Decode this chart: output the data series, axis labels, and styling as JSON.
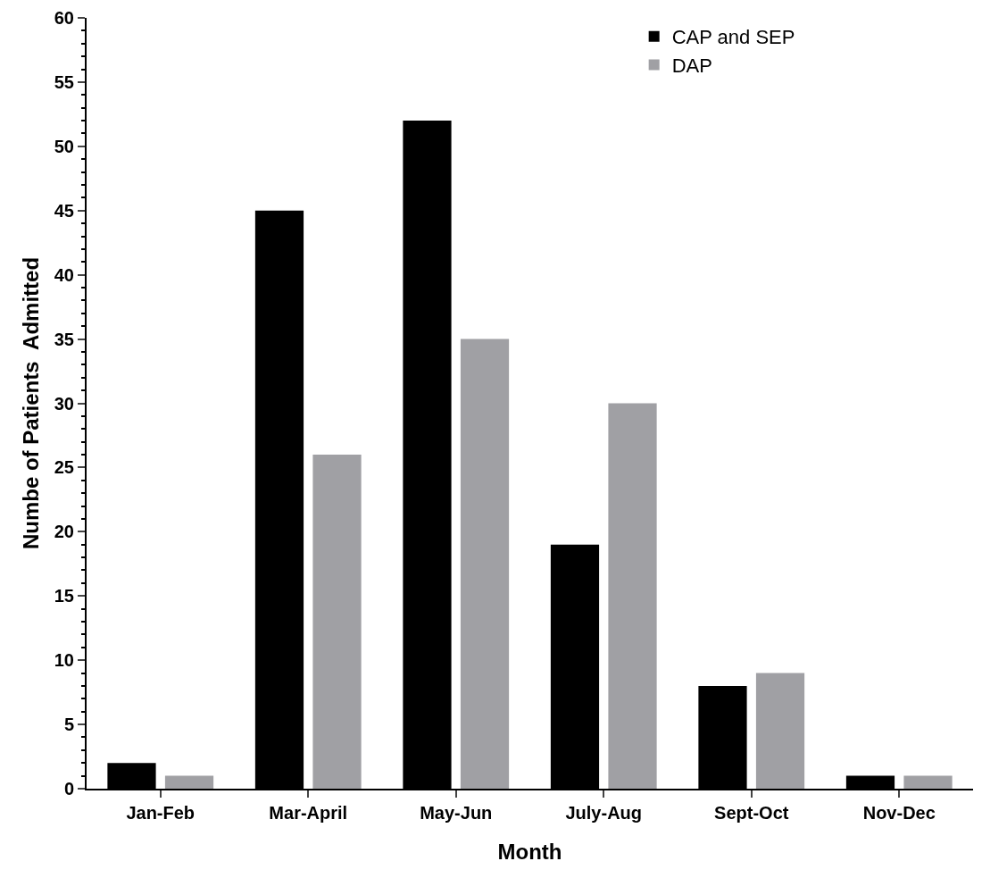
{
  "chart_data": {
    "type": "bar",
    "xlabel": "Month",
    "ylabel": "Numbe of Patients  Admitted",
    "categories": [
      "Jan-Feb",
      "Mar-April",
      "May-Jun",
      "July-Aug",
      "Sept-Oct",
      "Nov-Dec"
    ],
    "series": [
      {
        "name": "CAP and SEP",
        "color": "#000000",
        "values": [
          2,
          45,
          52,
          19,
          8,
          1
        ]
      },
      {
        "name": "DAP",
        "color": "#a0a0a4",
        "values": [
          1,
          26,
          35,
          30,
          9,
          1
        ]
      }
    ],
    "ylim": [
      0,
      60
    ],
    "yticks": [
      0,
      {
        "value": 1,
        "label": null
      },
      {
        "value": 2,
        "label": null
      },
      {
        "value": 3,
        "label": null
      },
      {
        "value": 4,
        "label": null
      },
      5,
      {
        "value": 6,
        "label": null
      },
      {
        "value": 7,
        "label": null
      },
      {
        "value": 8,
        "label": null
      },
      {
        "value": 9,
        "label": null
      },
      10,
      {
        "value": 11,
        "label": null
      },
      {
        "value": 12,
        "label": null
      },
      {
        "value": 13,
        "label": null
      },
      {
        "value": 14,
        "label": null
      },
      15,
      {
        "value": 16,
        "label": null
      },
      {
        "value": 17,
        "label": null
      },
      {
        "value": 18,
        "label": null
      },
      {
        "value": 19,
        "label": null
      },
      20,
      {
        "value": 21,
        "label": null
      },
      {
        "value": 22,
        "label": null
      },
      {
        "value": 23,
        "label": null
      },
      {
        "value": 24,
        "label": null
      },
      25,
      {
        "value": 26,
        "label": null
      },
      {
        "value": 27,
        "label": null
      },
      {
        "value": 28,
        "label": null
      },
      {
        "value": 29,
        "label": null
      },
      30,
      {
        "value": 31,
        "label": null
      },
      {
        "value": 32,
        "label": null
      },
      {
        "value": 33,
        "label": null
      },
      {
        "value": 34,
        "label": null
      },
      35,
      {
        "value": 36,
        "label": null
      },
      {
        "value": 37,
        "label": null
      },
      {
        "value": 38,
        "label": null
      },
      {
        "value": 39,
        "label": null
      },
      40,
      {
        "value": 41,
        "label": null
      },
      {
        "value": 42,
        "label": null
      },
      {
        "value": 43,
        "label": null
      },
      {
        "value": 44,
        "label": null
      },
      45,
      {
        "value": 46,
        "label": null
      },
      {
        "value": 47,
        "label": null
      },
      {
        "value": 48,
        "label": null
      },
      {
        "value": 49,
        "label": null
      },
      50,
      {
        "value": 51,
        "label": null
      },
      {
        "value": 52,
        "label": null
      },
      {
        "value": 53,
        "label": null
      },
      {
        "value": 54,
        "label": null
      },
      55,
      {
        "value": 56,
        "label": null
      },
      {
        "value": 57,
        "label": null
      },
      {
        "value": 58,
        "label": null
      },
      {
        "value": 59,
        "label": null
      },
      60
    ],
    "legend": "top right"
  }
}
